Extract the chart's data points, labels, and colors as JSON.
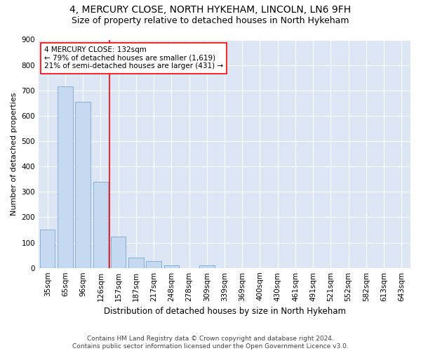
{
  "title": "4, MERCURY CLOSE, NORTH HYKEHAM, LINCOLN, LN6 9FH",
  "subtitle": "Size of property relative to detached houses in North Hykeham",
  "xlabel": "Distribution of detached houses by size in North Hykeham",
  "ylabel": "Number of detached properties",
  "footer_line1": "Contains HM Land Registry data © Crown copyright and database right 2024.",
  "footer_line2": "Contains public sector information licensed under the Open Government Licence v3.0.",
  "categories": [
    "35sqm",
    "65sqm",
    "96sqm",
    "126sqm",
    "157sqm",
    "187sqm",
    "217sqm",
    "248sqm",
    "278sqm",
    "309sqm",
    "339sqm",
    "369sqm",
    "400sqm",
    "430sqm",
    "461sqm",
    "491sqm",
    "521sqm",
    "552sqm",
    "582sqm",
    "613sqm",
    "643sqm"
  ],
  "values": [
    150,
    715,
    655,
    340,
    125,
    40,
    28,
    10,
    0,
    10,
    0,
    0,
    0,
    0,
    0,
    0,
    0,
    0,
    0,
    0,
    0
  ],
  "bar_color": "#c5d9f1",
  "bar_edge_color": "#7aa6d4",
  "property_line_x": 3.5,
  "property_line_color": "red",
  "annotation_text_line1": "4 MERCURY CLOSE: 132sqm",
  "annotation_text_line2": "← 79% of detached houses are smaller (1,619)",
  "annotation_text_line3": "21% of semi-detached houses are larger (431) →",
  "ylim": [
    0,
    900
  ],
  "yticks": [
    0,
    100,
    200,
    300,
    400,
    500,
    600,
    700,
    800,
    900
  ],
  "fig_bg_color": "#ffffff",
  "plot_bg_color": "#dce6f5",
  "grid_color": "#ffffff",
  "title_fontsize": 10,
  "subtitle_fontsize": 9,
  "xlabel_fontsize": 8.5,
  "ylabel_fontsize": 8,
  "tick_fontsize": 7.5,
  "footer_fontsize": 6.5
}
